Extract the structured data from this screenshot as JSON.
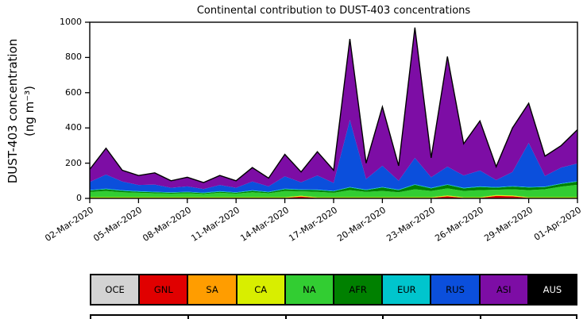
{
  "chart_data": {
    "type": "area",
    "stacked": true,
    "title": "Continental contribution to DUST-403 concentrations",
    "ylabel": "DUST-403 concentration (ng m⁻³)",
    "ylabel_line1": "DUST-403 concentration",
    "ylabel_line2": "(ng m⁻³)",
    "ylim": [
      0,
      1000
    ],
    "y_ticks": [
      0,
      200,
      400,
      600,
      800,
      1000
    ],
    "n_points": 31,
    "x_tick_indices": [
      0,
      3,
      6,
      9,
      12,
      15,
      18,
      21,
      24,
      27,
      30
    ],
    "x_tick_labels": [
      "02-Mar-2020",
      "05-Mar-2020",
      "08-Mar-2020",
      "11-Mar-2020",
      "14-Mar-2020",
      "17-Mar-2020",
      "20-Mar-2020",
      "23-Mar-2020",
      "26-Mar-2020",
      "29-Mar-2020",
      "01-Apr-2020"
    ],
    "legend_position": "bottom",
    "grid": false,
    "series": [
      {
        "name": "OCE",
        "color": "#d3d3d3",
        "text_color": "#000000",
        "values": [
          2,
          2,
          2,
          2,
          2,
          2,
          2,
          2,
          2,
          2,
          2,
          2,
          2,
          2,
          2,
          2,
          2,
          2,
          2,
          2,
          2,
          2,
          2,
          2,
          2,
          2,
          2,
          2,
          2,
          2,
          2
        ]
      },
      {
        "name": "GNL",
        "color": "#e00000",
        "text_color": "#000000",
        "values": [
          0,
          0,
          0,
          0,
          0,
          0,
          0,
          0,
          0,
          0,
          0,
          0,
          0,
          8,
          0,
          0,
          0,
          0,
          0,
          0,
          0,
          0,
          10,
          0,
          0,
          12,
          10,
          0,
          0,
          0,
          0
        ]
      },
      {
        "name": "SA",
        "color": "#ff9d00",
        "text_color": "#000000",
        "values": [
          1,
          1,
          1,
          1,
          1,
          1,
          1,
          1,
          1,
          1,
          1,
          1,
          1,
          1,
          1,
          1,
          1,
          1,
          1,
          1,
          1,
          1,
          1,
          1,
          1,
          1,
          1,
          1,
          1,
          1,
          1
        ]
      },
      {
        "name": "CA",
        "color": "#d8ee00",
        "text_color": "#000000",
        "values": [
          4,
          4,
          4,
          4,
          4,
          4,
          4,
          4,
          4,
          4,
          4,
          4,
          4,
          4,
          4,
          4,
          4,
          4,
          4,
          4,
          4,
          4,
          4,
          4,
          4,
          4,
          4,
          4,
          4,
          4,
          4
        ]
      },
      {
        "name": "NA",
        "color": "#32cd32",
        "text_color": "#000000",
        "values": [
          30,
          35,
          28,
          25,
          22,
          20,
          22,
          18,
          25,
          20,
          28,
          22,
          35,
          25,
          30,
          25,
          40,
          30,
          35,
          28,
          45,
          35,
          40,
          35,
          40,
          30,
          35,
          40,
          45,
          60,
          70
        ]
      },
      {
        "name": "AFR",
        "color": "#008000",
        "text_color": "#000000",
        "values": [
          8,
          10,
          8,
          6,
          6,
          5,
          6,
          5,
          6,
          5,
          8,
          6,
          10,
          8,
          10,
          8,
          15,
          10,
          20,
          12,
          25,
          15,
          20,
          15,
          18,
          12,
          15,
          15,
          12,
          15,
          18
        ]
      },
      {
        "name": "EUR",
        "color": "#00c5cd",
        "text_color": "#000000",
        "values": [
          3,
          3,
          3,
          3,
          3,
          3,
          3,
          3,
          3,
          3,
          3,
          3,
          3,
          3,
          3,
          3,
          3,
          3,
          3,
          3,
          3,
          3,
          3,
          3,
          3,
          3,
          3,
          3,
          3,
          3,
          3
        ]
      },
      {
        "name": "RUS",
        "color": "#0b4fdc",
        "text_color": "#000000",
        "values": [
          45,
          80,
          50,
          35,
          40,
          25,
          30,
          20,
          35,
          25,
          50,
          30,
          70,
          40,
          80,
          45,
          380,
          60,
          120,
          50,
          150,
          60,
          100,
          70,
          90,
          40,
          80,
          250,
          60,
          90,
          100
        ]
      },
      {
        "name": "ASI",
        "color": "#7d0da5",
        "text_color": "#000000",
        "values": [
          72,
          150,
          64,
          54,
          67,
          40,
          52,
          37,
          54,
          40,
          79,
          47,
          125,
          59,
          135,
          72,
          460,
          90,
          335,
          85,
          740,
          110,
          625,
          180,
          282,
          76,
          250,
          225,
          113,
          125,
          192
        ]
      },
      {
        "name": "AUS",
        "color": "#000000",
        "text_color": "#ffffff",
        "values": [
          0,
          0,
          0,
          0,
          0,
          0,
          0,
          0,
          0,
          0,
          0,
          0,
          0,
          0,
          0,
          0,
          0,
          0,
          0,
          0,
          0,
          0,
          0,
          0,
          0,
          0,
          0,
          0,
          0,
          0,
          0
        ]
      }
    ]
  }
}
